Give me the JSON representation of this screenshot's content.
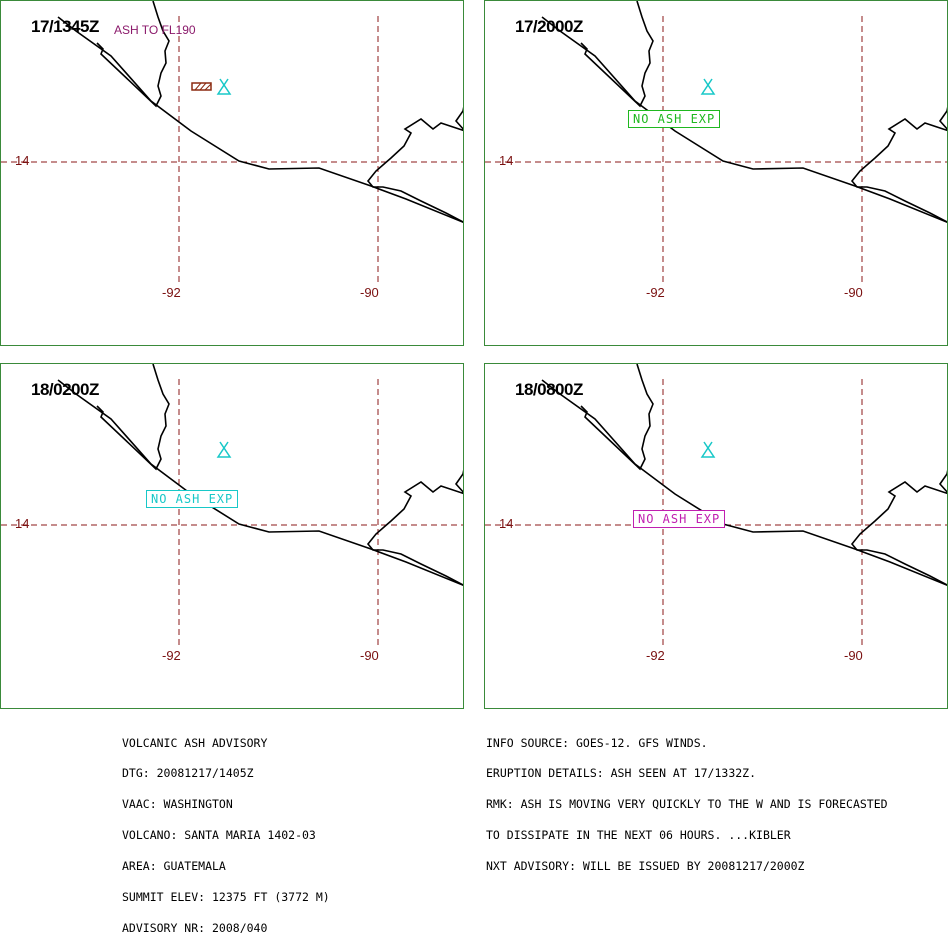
{
  "panels": [
    {
      "time": "17/1345Z",
      "note": "ASH TO FL190",
      "status": "",
      "status_color": "",
      "ash_polygon": true
    },
    {
      "time": "17/2000Z",
      "note": "",
      "status": "NO ASH EXP",
      "status_color": "#1fb81f",
      "ash_polygon": false
    },
    {
      "time": "18/0200Z",
      "note": "",
      "status": "NO ASH EXP",
      "status_color": "#18c8c8",
      "ash_polygon": false
    },
    {
      "time": "18/0800Z",
      "note": "",
      "status": "NO ASH EXP",
      "status_color": "#c020b0",
      "ash_polygon": false
    }
  ],
  "grid_labels": {
    "lat": "14",
    "lon_west": "-92",
    "lon_east": "-90"
  },
  "colors": {
    "border": "#3a8a3a",
    "grid": "#8b1a1a",
    "volcano": "#18c8c8",
    "ash": "#8b2a10",
    "note": "#8b1a6b"
  },
  "advisory": {
    "left": [
      "VOLCANIC ASH ADVISORY",
      "DTG: 20081217/1405Z",
      "VAAC: WASHINGTON",
      "VOLCANO: SANTA MARIA 1402-03",
      "AREA: GUATEMALA",
      "SUMMIT ELEV: 12375 FT (3772 M)",
      "ADVISORY NR: 2008/040"
    ],
    "right": [
      "INFO SOURCE: GOES-12. GFS WINDS.",
      "ERUPTION DETAILS: ASH SEEN AT 17/1332Z.",
      "RMK: ASH IS MOVING VERY QUICKLY TO THE W AND IS FORECASTED",
      "TO DISSIPATE IN THE NEXT 06 HOURS. ...KIBLER",
      "NXT ADVISORY: WILL BE ISSUED BY 20081217/2000Z"
    ]
  }
}
